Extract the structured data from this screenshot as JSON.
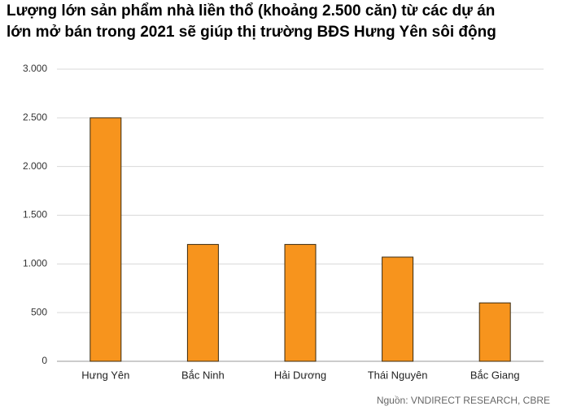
{
  "chart_data": {
    "type": "bar",
    "title": [
      "Lượng lớn sản phẩm nhà liền thổ (khoảng 2.500 căn) từ các dự án",
      "lớn mở bán trong 2021 sẽ giúp thị trường BĐS Hưng Yên sôi động"
    ],
    "categories": [
      "Hưng Yên",
      "Bắc Ninh",
      "Hải Dương",
      "Thái Nguyên",
      "Bắc Giang"
    ],
    "values": [
      2500,
      1200,
      1200,
      1070,
      600
    ],
    "color": "#f7941d",
    "ylim": [
      0,
      3000
    ],
    "yticks": [
      0,
      500,
      {
        "value": 1000,
        "label": "1.000"
      },
      {
        "value": 1500,
        "label": "1.500"
      },
      {
        "value": 2000,
        "label": "2.000"
      },
      {
        "value": 2500,
        "label": "2.500"
      },
      {
        "value": 3000,
        "label": "3.000"
      }
    ],
    "grid": true,
    "source": "Nguồn: VNDIRECT RESEARCH, CBRE"
  }
}
